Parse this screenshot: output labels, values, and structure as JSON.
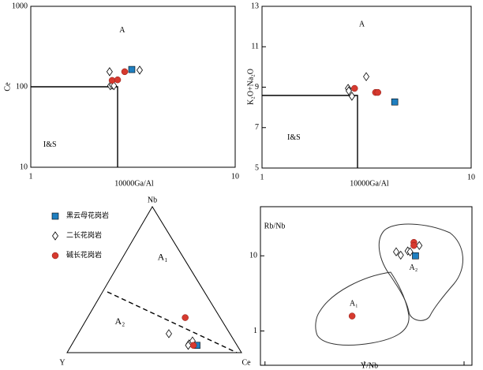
{
  "chart_data": [
    {
      "type": "scatter",
      "x_label": "10000Ga/Al",
      "y_label": "Ce",
      "xscale": "log",
      "yscale": "log",
      "xlim": [
        1,
        10
      ],
      "ylim": [
        10,
        1000
      ],
      "xticks": [
        1,
        10
      ],
      "yticks": [
        10,
        100,
        1000
      ],
      "annotations": [
        {
          "text": "A",
          "x": 2.8,
          "y": 500
        },
        {
          "text": "I&S",
          "x": 1.24,
          "y": 19
        }
      ],
      "series": [
        {
          "marker": "square",
          "color": "#1f7fc0",
          "x": [
            3.12
          ],
          "y": [
            164
          ]
        },
        {
          "marker": "diamond",
          "color": "#ffffff",
          "x": [
            2.43,
            3.41,
            2.45,
            2.5,
            2.55
          ],
          "y": [
            154,
            161,
            103,
            105,
            103
          ]
        },
        {
          "marker": "circle",
          "color": "#d63a2f",
          "x": [
            2.5,
            2.66,
            2.88
          ],
          "y": [
            120,
            122,
            154
          ]
        }
      ]
    },
    {
      "type": "scatter",
      "x_label": "10000Ga/Al",
      "y_label": "K₂O+Na₂O",
      "xscale": "log",
      "yscale": "linear",
      "xlim": [
        1,
        10
      ],
      "ylim": [
        5,
        13
      ],
      "xticks": [
        1,
        10
      ],
      "yticks": [
        5,
        7,
        9,
        11,
        13
      ],
      "annotations": [
        {
          "text": "A",
          "x": 3.0,
          "y": 12.1
        },
        {
          "text": "I&S",
          "x": 1.42,
          "y": 6.5
        }
      ],
      "series": [
        {
          "marker": "square",
          "color": "#1f7fc0",
          "x": [
            4.31
          ],
          "y": [
            8.27
          ]
        },
        {
          "marker": "diamond",
          "color": "#ffffff",
          "x": [
            2.58,
            2.6,
            2.69,
            3.15
          ],
          "y": [
            8.94,
            8.82,
            8.55,
            9.52
          ]
        },
        {
          "marker": "circle",
          "color": "#d63a2f",
          "x": [
            2.77,
            3.49,
            3.58
          ],
          "y": [
            8.94,
            8.74,
            8.74
          ]
        }
      ]
    },
    {
      "type": "ternary",
      "vertices": [
        "Nb",
        "Y",
        "Ce"
      ],
      "annotations": [
        {
          "text": "A₁",
          "nb": 65,
          "y": 12,
          "ce": 23
        },
        {
          "text": "A₂",
          "nb": 21,
          "y": 59,
          "ce": 20
        }
      ],
      "series": [
        {
          "name": "黑云母花岗岩",
          "marker": "square",
          "color": "#1f7fc0",
          "points": [
            [
              5,
              23,
              72
            ]
          ]
        },
        {
          "name": "二长花岗岩",
          "marker": "diamond",
          "color": "#ffffff",
          "points": [
            [
              13,
              35,
              52
            ],
            [
              6,
              27,
              67
            ],
            [
              8,
              24,
              68
            ],
            [
              5,
              28,
              67
            ]
          ]
        },
        {
          "name": "碱长花岗岩",
          "marker": "circle",
          "color": "#d63a2f",
          "points": [
            [
              24,
              20,
              56
            ],
            [
              5,
              25,
              70
            ]
          ]
        }
      ]
    },
    {
      "type": "scatter",
      "x_label": "Y/Nb",
      "y_label": "Rb/Nb",
      "xscale": "log",
      "yscale": "log",
      "xlim": [
        0.09,
        12
      ],
      "ylim": [
        0.35,
        45
      ],
      "xticks": [
        {
          "value": 0.1,
          "label": "0. 1"
        },
        1,
        10
      ],
      "yticks": [
        1,
        10
      ],
      "annotations": [
        {
          "text": "A₂",
          "x": 3.1,
          "y": 6.9
        },
        {
          "text": "A₁",
          "x": 0.78,
          "y": 2.3
        }
      ],
      "series": [
        {
          "marker": "square",
          "color": "#1f7fc0",
          "x": [
            3.25
          ],
          "y": [
            10
          ]
        },
        {
          "marker": "diamond",
          "color": "#ffffff",
          "x": [
            2.08,
            2.31,
            2.72,
            2.87,
            3.55
          ],
          "y": [
            11.3,
            10.2,
            11.6,
            11.3,
            13.7
          ]
        },
        {
          "marker": "circle",
          "color": "#d63a2f",
          "x": [
            0.75,
            3.13,
            3.13
          ],
          "y": [
            1.58,
            15.1,
            13.7
          ]
        }
      ]
    }
  ]
}
